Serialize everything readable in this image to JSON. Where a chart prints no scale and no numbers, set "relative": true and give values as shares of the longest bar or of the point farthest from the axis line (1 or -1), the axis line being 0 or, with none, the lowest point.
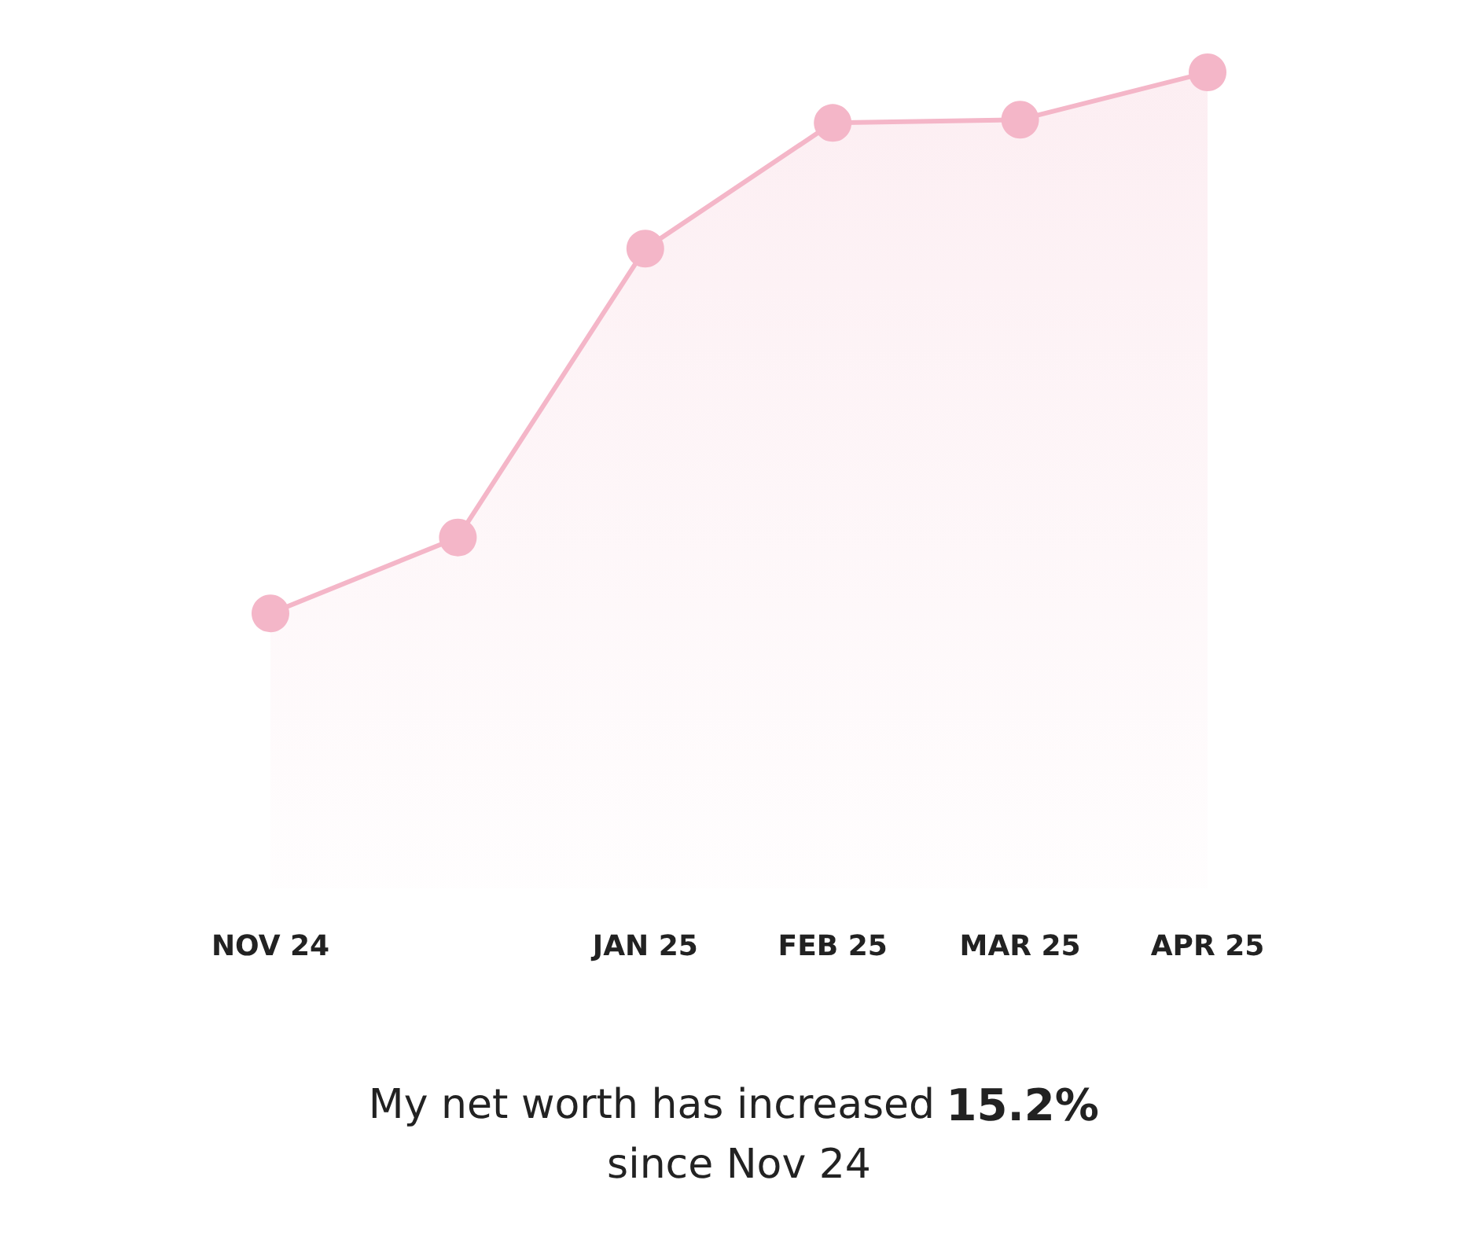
{
  "chart_data": {
    "type": "area",
    "relative": true,
    "categories": [
      "NOV 24",
      null,
      "JAN 25",
      "FEB 25",
      "MAR 25",
      "APR 25"
    ],
    "series": [
      {
        "color": "#f4b6c8",
        "values": [
          0.337,
          0.43,
          0.784,
          0.938,
          0.942,
          1
        ]
      }
    ],
    "marker": "circle",
    "grid": false,
    "annotations": [
      "My net worth has increased 15.2% since Nov 24"
    ]
  }
}
